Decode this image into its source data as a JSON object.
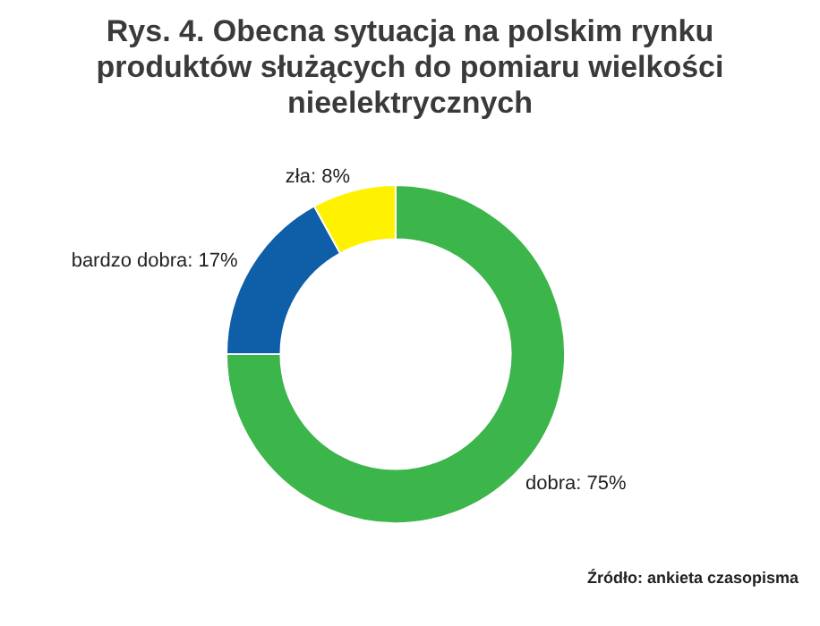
{
  "chart_data": {
    "type": "donut",
    "title": "Rys. 4. Obecna sytuacja na polskim rynku produktów służących do pomiaru wielkości nieelektrycznych",
    "categories": [
      "dobra",
      "bardzo dobra",
      "zła"
    ],
    "values": [
      75,
      17,
      8
    ],
    "colors": [
      "#3cb54a",
      "#0f5ea8",
      "#fff200"
    ],
    "value_labels": [
      "75%",
      "17%",
      "8%"
    ],
    "legend": false,
    "annotations": [
      "Źródło: ankieta czasopisma"
    ]
  }
}
